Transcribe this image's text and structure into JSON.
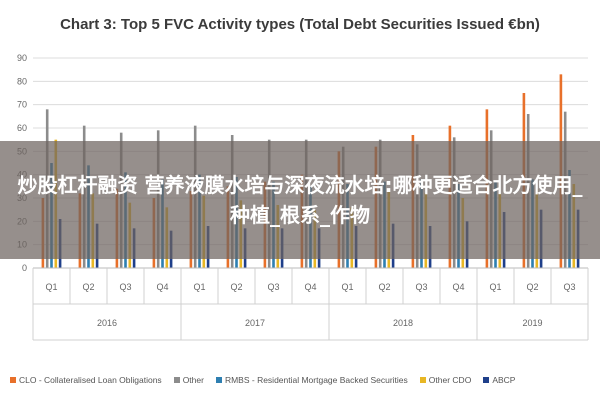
{
  "chart_data": {
    "type": "bar",
    "title": "Chart 3: Top 5 FVC Activity types (Total Debt Securities Issued €bn)",
    "ylim": [
      0,
      90
    ],
    "yticks": [
      0,
      10,
      20,
      30,
      40,
      50,
      60,
      70,
      80,
      90
    ],
    "grid": true,
    "legend_position": "bottom",
    "categories": [
      "Q1",
      "Q2",
      "Q3",
      "Q4",
      "Q1",
      "Q2",
      "Q3",
      "Q4",
      "Q1",
      "Q2",
      "Q3",
      "Q4",
      "Q1",
      "Q2",
      "Q3"
    ],
    "year_groups": [
      {
        "label": "2016",
        "count": 4
      },
      {
        "label": "2017",
        "count": 4
      },
      {
        "label": "2018",
        "count": 4
      },
      {
        "label": "2019",
        "count": 3
      }
    ],
    "series": [
      {
        "name": "CLO - Collateralised Loan Obligations",
        "color": "#e8702a",
        "values": [
          30,
          32,
          34,
          30,
          33,
          35,
          37,
          40,
          50,
          52,
          57,
          61,
          68,
          75,
          83
        ]
      },
      {
        "name": "Other",
        "color": "#8c8c8c",
        "values": [
          68,
          61,
          58,
          59,
          61,
          57,
          55,
          55,
          52,
          55,
          53,
          56,
          59,
          66,
          67
        ]
      },
      {
        "name": "RMBS - Residential Mortgage Backed Securities",
        "color": "#2e7fb1",
        "values": [
          45,
          44,
          41,
          38,
          40,
          39,
          37,
          35,
          36,
          37,
          38,
          36,
          37,
          38,
          42
        ]
      },
      {
        "name": "Other CDO",
        "color": "#e8b724",
        "values": [
          55,
          32,
          28,
          26,
          31,
          29,
          27,
          25,
          26,
          33,
          32,
          30,
          32,
          34,
          36
        ]
      },
      {
        "name": "ABCP",
        "color": "#1f3f8a",
        "values": [
          21,
          19,
          17,
          16,
          18,
          17,
          17,
          17,
          18,
          19,
          18,
          20,
          24,
          25,
          25
        ]
      }
    ]
  },
  "overlay": {
    "text": "炒股杠杆融资 营养液膜水培与深夜流水培:哪种更适合北方使用_种植_根系_作物"
  }
}
